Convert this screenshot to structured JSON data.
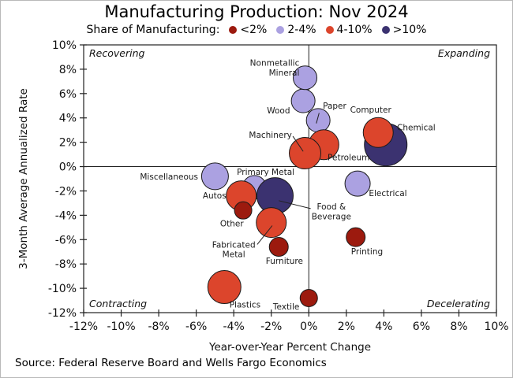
{
  "title": "Manufacturing Production: Nov 2024",
  "legend": {
    "title": "Share of Manufacturing:",
    "items": [
      {
        "label": "<2%",
        "key": "<2%"
      },
      {
        "label": "2-4%",
        "key": "2-4%"
      },
      {
        "label": "4-10%",
        "key": "4-10%"
      },
      {
        "label": ">10%",
        "key": ">10%"
      }
    ]
  },
  "source": "Source: Federal Reserve Board and Wells Fargo Economics",
  "chart_data": {
    "type": "scatter",
    "subtype": "bubble",
    "xlabel": "Year-over-Year Percent Change",
    "ylabel": "3-Month Average Annualized Rate",
    "xlim": [
      -12,
      10
    ],
    "ylim": [
      -12,
      10
    ],
    "x_ticks": [
      -12,
      -10,
      -8,
      -6,
      -4,
      -2,
      0,
      2,
      4,
      6,
      8,
      10
    ],
    "y_ticks": [
      10,
      8,
      6,
      4,
      2,
      0,
      -2,
      -4,
      -6,
      -8,
      -10,
      -12
    ],
    "tick_suffix": "%",
    "grid": false,
    "quadrant_labels": {
      "top_left": "Recovering",
      "top_right": "Expanding",
      "bottom_left": "Contracting",
      "bottom_right": "Decelerating"
    },
    "colors": {
      "<2%": "#9C1A0E",
      "2-4%": "#ABA1E1",
      "4-10%": "#DC452C",
      ">10%": "#3B3270",
      "stroke": "#1a1a1a",
      "axis": "#222222"
    },
    "share_categories": [
      "<2%",
      "2-4%",
      "4-10%",
      ">10%"
    ],
    "points": [
      {
        "name": "Primary Metal",
        "x": -2.9,
        "y": -1.7,
        "share": "2-4%",
        "r": 15,
        "label": {
          "lines": [
            "Primary Metal"
          ],
          "x": -2.3,
          "y": [
            -0.45
          ],
          "anchor": "middle"
        }
      },
      {
        "name": "Miscellaneous",
        "x": -5.0,
        "y": -0.8,
        "share": "2-4%",
        "r": 17,
        "label": {
          "lines": [
            "Miscellaneous"
          ],
          "x": -5.9,
          "y": [
            -0.85
          ],
          "anchor": "end"
        }
      },
      {
        "name": "Paper",
        "x": 0.5,
        "y": 3.8,
        "share": "2-4%",
        "r": 15,
        "label": {
          "lines": [
            "Paper"
          ],
          "x": 0.75,
          "y": [
            5.0
          ],
          "anchor": "start"
        }
      },
      {
        "name": "Wood",
        "x": -0.3,
        "y": 5.4,
        "share": "2-4%",
        "r": 15,
        "label": {
          "lines": [
            "Wood"
          ],
          "x": -1.0,
          "y": [
            4.6
          ],
          "anchor": "end"
        }
      },
      {
        "name": "Nonmetallic Mineral",
        "x": -0.2,
        "y": 7.3,
        "share": "2-4%",
        "r": 15,
        "label": {
          "lines": [
            "Nonmetallic",
            "Mineral"
          ],
          "x": -0.5,
          "y": [
            8.5,
            7.7
          ],
          "anchor": "end"
        }
      },
      {
        "name": "Electrical",
        "x": 2.6,
        "y": -1.4,
        "share": "2-4%",
        "r": 16,
        "label": {
          "lines": [
            "Electrical"
          ],
          "x": 3.2,
          "y": [
            -2.2
          ],
          "anchor": "start"
        }
      },
      {
        "name": "Chemical",
        "x": 4.1,
        "y": 1.8,
        "share": ">10%",
        "r": 27,
        "label": {
          "lines": [
            "Chemical"
          ],
          "x": 4.7,
          "y": [
            3.2
          ],
          "anchor": "start"
        }
      },
      {
        "name": "Food & Beverage",
        "x": -1.8,
        "y": -2.4,
        "share": ">10%",
        "r": 23,
        "label": {
          "lines": [
            "Food &",
            "Beverage"
          ],
          "x": 1.2,
          "y": [
            -3.3,
            -4.1
          ],
          "anchor": "middle"
        }
      },
      {
        "name": "Petroleum",
        "x": 0.8,
        "y": 1.8,
        "share": "4-10%",
        "r": 19,
        "label": {
          "lines": [
            "Petroleum"
          ],
          "x": 1.0,
          "y": [
            0.75
          ],
          "anchor": "start"
        }
      },
      {
        "name": "Machinery",
        "x": -0.2,
        "y": 1.1,
        "share": "4-10%",
        "r": 20,
        "label": {
          "lines": [
            "Machinery"
          ],
          "x": -0.9,
          "y": [
            2.6
          ],
          "anchor": "end"
        }
      },
      {
        "name": "Computer",
        "x": 3.7,
        "y": 2.8,
        "share": "4-10%",
        "r": 19,
        "label": {
          "lines": [
            "Computer"
          ],
          "x": 2.2,
          "y": [
            4.65
          ],
          "anchor": "start"
        }
      },
      {
        "name": "Autos",
        "x": -3.6,
        "y": -2.4,
        "share": "4-10%",
        "r": 19,
        "label": {
          "lines": [
            "Autos"
          ],
          "x": -4.4,
          "y": [
            -2.4
          ],
          "anchor": "end"
        }
      },
      {
        "name": "Fabricated Metal",
        "x": -2.0,
        "y": -4.6,
        "share": "4-10%",
        "r": 19,
        "label": {
          "lines": [
            "Fabricated",
            "Metal"
          ],
          "x": -4.0,
          "y": [
            -6.45,
            -7.2
          ],
          "anchor": "middle"
        }
      },
      {
        "name": "Plastics",
        "x": -4.5,
        "y": -9.9,
        "share": "4-10%",
        "r": 21,
        "label": {
          "lines": [
            "Plastics"
          ],
          "x": -3.4,
          "y": [
            -11.35
          ],
          "anchor": "middle"
        }
      },
      {
        "name": "Other",
        "x": -3.5,
        "y": -3.6,
        "share": "<2%",
        "r": 11,
        "label": {
          "lines": [
            "Other"
          ],
          "x": -4.1,
          "y": [
            -4.7
          ],
          "anchor": "middle"
        }
      },
      {
        "name": "Furniture",
        "x": -1.6,
        "y": -6.6,
        "share": "<2%",
        "r": 12,
        "label": {
          "lines": [
            "Furniture"
          ],
          "x": -1.3,
          "y": [
            -7.75
          ],
          "anchor": "middle"
        }
      },
      {
        "name": "Textile",
        "x": 0.0,
        "y": -10.8,
        "share": "<2%",
        "r": 11,
        "label": {
          "lines": [
            "Textile"
          ],
          "x": -0.5,
          "y": [
            -11.5
          ],
          "anchor": "end"
        }
      },
      {
        "name": "Printing",
        "x": 2.5,
        "y": -5.8,
        "share": "<2%",
        "r": 12,
        "label": {
          "lines": [
            "Printing"
          ],
          "x": 3.1,
          "y": [
            -7.0
          ],
          "anchor": "middle"
        }
      }
    ],
    "leader_lines": [
      {
        "for": "Paper",
        "from": [
          0.55,
          4.4
        ],
        "to": [
          0.4,
          3.55
        ]
      },
      {
        "for": "Machinery",
        "from": [
          -0.85,
          2.5
        ],
        "to": [
          -0.3,
          1.25
        ]
      },
      {
        "for": "Fabricated Metal",
        "from": [
          -2.75,
          -6.4
        ],
        "to": [
          -1.95,
          -4.85
        ]
      },
      {
        "for": "Food & Beverage",
        "from": [
          -1.6,
          -2.8
        ],
        "to": [
          0.1,
          -3.45
        ]
      }
    ]
  }
}
